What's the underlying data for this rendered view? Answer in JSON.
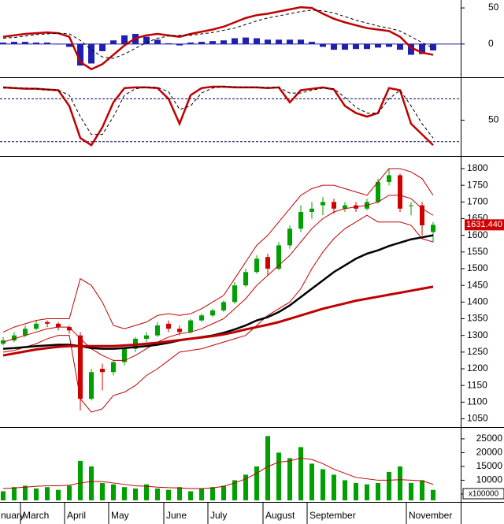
{
  "chart_data": [
    {
      "type": "macd",
      "ylim": [
        -45,
        61
      ],
      "yticks": [
        0,
        50
      ],
      "lines": [
        {
          "color": "#c00000",
          "width": 2.5,
          "dashed": false,
          "values": [
            10,
            12,
            14,
            15,
            16,
            15,
            10,
            -25,
            -35,
            -28,
            -15,
            -2,
            8,
            12,
            14,
            12,
            10,
            14,
            17,
            20,
            24,
            30,
            36,
            40,
            42,
            45,
            48,
            51,
            50,
            42,
            35,
            30,
            26,
            22,
            20,
            18,
            10,
            -5,
            -12,
            -15
          ]
        },
        {
          "color": "#000000",
          "width": 1,
          "dashed": true,
          "values": [
            8,
            9,
            11,
            13,
            14,
            15,
            14,
            5,
            -8,
            -18,
            -20,
            -14,
            -6,
            2,
            8,
            11,
            12,
            12,
            14,
            16,
            19,
            22,
            27,
            32,
            36,
            39,
            42,
            45,
            47,
            46,
            43,
            38,
            33,
            29,
            25,
            22,
            18,
            10,
            2,
            -6
          ]
        }
      ],
      "bars": {
        "color": "#2020b0",
        "values": [
          2,
          3,
          3,
          2,
          2,
          0,
          -4,
          -30,
          -27,
          -10,
          5,
          12,
          14,
          10,
          6,
          1,
          -2,
          2,
          3,
          4,
          5,
          8,
          9,
          8,
          6,
          6,
          6,
          6,
          3,
          -4,
          -8,
          -8,
          -7,
          -7,
          -5,
          -4,
          -8,
          -15,
          -14,
          -9
        ]
      }
    },
    {
      "type": "line",
      "ylim": [
        2,
        108
      ],
      "yticks": [
        50
      ],
      "levels": [
        20,
        80
      ],
      "lines": [
        {
          "color": "#c00000",
          "width": 2.5,
          "dashed": false,
          "values": [
            96,
            95,
            94,
            94,
            93,
            92,
            70,
            25,
            15,
            40,
            75,
            95,
            96,
            96,
            95,
            80,
            45,
            85,
            95,
            97,
            97,
            96,
            96,
            96,
            95,
            96,
            75,
            92,
            94,
            96,
            93,
            70,
            60,
            55,
            60,
            95,
            92,
            45,
            30,
            15
          ]
        },
        {
          "color": "#000000",
          "width": 1,
          "dashed": true,
          "values": [
            95,
            95,
            95,
            94,
            93,
            92,
            85,
            55,
            30,
            30,
            55,
            85,
            94,
            96,
            96,
            90,
            65,
            70,
            88,
            95,
            97,
            97,
            96,
            96,
            96,
            96,
            88,
            88,
            92,
            95,
            94,
            82,
            68,
            60,
            60,
            80,
            92,
            70,
            45,
            25
          ]
        }
      ]
    },
    {
      "type": "candlestick",
      "ylim": [
        1030,
        1833
      ],
      "yticks": [
        1050,
        1100,
        1150,
        1200,
        1250,
        1300,
        1350,
        1400,
        1450,
        1500,
        1550,
        1600,
        1650,
        1700,
        1750,
        1800
      ],
      "up_color": "#00a000",
      "down_color": "#d00000",
      "open": [
        1275,
        1285,
        1300,
        1320,
        1340,
        1335,
        1325,
        1300,
        1110,
        1200,
        1190,
        1220,
        1260,
        1290,
        1300,
        1335,
        1320,
        1310,
        1345,
        1360,
        1375,
        1400,
        1450,
        1490,
        1535,
        1500,
        1570,
        1620,
        1670,
        1690,
        1700,
        1680,
        1690,
        1680,
        1700,
        1760,
        1780,
        1690,
        1690,
        1610
      ],
      "high": [
        1295,
        1310,
        1330,
        1345,
        1345,
        1340,
        1330,
        1310,
        1200,
        1215,
        1225,
        1265,
        1295,
        1310,
        1340,
        1345,
        1330,
        1350,
        1365,
        1380,
        1405,
        1460,
        1500,
        1540,
        1545,
        1580,
        1630,
        1690,
        1700,
        1715,
        1710,
        1700,
        1700,
        1710,
        1770,
        1800,
        1785,
        1700,
        1700,
        1640
      ],
      "low": [
        1270,
        1280,
        1295,
        1315,
        1325,
        1315,
        1305,
        1075,
        1105,
        1135,
        1180,
        1210,
        1250,
        1280,
        1295,
        1310,
        1300,
        1305,
        1340,
        1355,
        1370,
        1395,
        1445,
        1485,
        1480,
        1495,
        1560,
        1610,
        1650,
        1660,
        1665,
        1670,
        1670,
        1675,
        1695,
        1750,
        1670,
        1660,
        1600,
        1580
      ],
      "close": [
        1285,
        1300,
        1320,
        1335,
        1335,
        1325,
        1315,
        1110,
        1190,
        1190,
        1220,
        1260,
        1290,
        1300,
        1330,
        1320,
        1310,
        1345,
        1360,
        1375,
        1400,
        1450,
        1490,
        1530,
        1500,
        1570,
        1620,
        1670,
        1680,
        1700,
        1680,
        1690,
        1680,
        1700,
        1760,
        1780,
        1680,
        1690,
        1630,
        1631.44
      ],
      "lines": [
        {
          "color": "#c00000",
          "width": 1,
          "values": [
            1310,
            1325,
            1335,
            1345,
            1350,
            1350,
            1350,
            1470,
            1450,
            1400,
            1330,
            1320,
            1330,
            1340,
            1360,
            1365,
            1360,
            1365,
            1380,
            1400,
            1420,
            1470,
            1520,
            1570,
            1600,
            1640,
            1680,
            1720,
            1740,
            1750,
            1750,
            1740,
            1730,
            1720,
            1760,
            1800,
            1800,
            1790,
            1770,
            1720
          ]
        },
        {
          "color": "#c00000",
          "width": 1,
          "values": [
            1280,
            1290,
            1300,
            1310,
            1320,
            1325,
            1325,
            1290,
            1260,
            1240,
            1225,
            1225,
            1240,
            1260,
            1280,
            1295,
            1305,
            1310,
            1320,
            1335,
            1350,
            1380,
            1410,
            1450,
            1480,
            1510,
            1540,
            1580,
            1620,
            1650,
            1670,
            1680,
            1685,
            1690,
            1700,
            1720,
            1720,
            1710,
            1680,
            1660
          ]
        },
        {
          "color": "#c00000",
          "width": 1,
          "values": [
            1250,
            1255,
            1265,
            1275,
            1290,
            1300,
            1300,
            1110,
            1070,
            1080,
            1120,
            1130,
            1150,
            1180,
            1200,
            1225,
            1250,
            1255,
            1260,
            1270,
            1280,
            1290,
            1300,
            1330,
            1360,
            1380,
            1400,
            1440,
            1500,
            1550,
            1590,
            1620,
            1640,
            1660,
            1640,
            1640,
            1640,
            1630,
            1590,
            1580
          ]
        },
        {
          "color": "#000000",
          "width": 2.5,
          "values": [
            1260,
            1262,
            1265,
            1268,
            1270,
            1272,
            1272,
            1268,
            1262,
            1260,
            1260,
            1262,
            1265,
            1268,
            1272,
            1278,
            1285,
            1290,
            1295,
            1300,
            1308,
            1318,
            1330,
            1345,
            1355,
            1370,
            1390,
            1415,
            1440,
            1465,
            1490,
            1510,
            1530,
            1545,
            1555,
            1568,
            1578,
            1588,
            1594,
            1600
          ]
        },
        {
          "color": "#c00000",
          "width": 3,
          "values": [
            1240,
            1246,
            1252,
            1258,
            1262,
            1266,
            1268,
            1268,
            1268,
            1268,
            1268,
            1270,
            1272,
            1275,
            1278,
            1282,
            1286,
            1290,
            1294,
            1298,
            1303,
            1310,
            1318,
            1325,
            1332,
            1340,
            1350,
            1360,
            1370,
            1380,
            1388,
            1396,
            1404,
            1410,
            1416,
            1422,
            1428,
            1434,
            1440,
            1446
          ]
        }
      ],
      "current_price": {
        "value": 1631.44,
        "label": "1631.440"
      }
    },
    {
      "type": "bar",
      "ylim": [
        2700,
        28400
      ],
      "yticks": [
        5000,
        10000,
        15000,
        20000,
        25000
      ],
      "unit_label": "x100000",
      "categories": [
        "nuary",
        null,
        "March",
        null,
        null,
        null,
        "April",
        null,
        null,
        null,
        "May",
        null,
        null,
        null,
        null,
        "June",
        null,
        null,
        null,
        "July",
        null,
        null,
        null,
        null,
        "August",
        null,
        null,
        null,
        "September",
        null,
        null,
        null,
        null,
        null,
        null,
        null,
        null,
        "November",
        null,
        null
      ],
      "color": "#00a000",
      "values": [
        6000,
        7500,
        8000,
        7000,
        7500,
        6500,
        8000,
        17000,
        15000,
        9000,
        8500,
        7500,
        7000,
        8500,
        7000,
        6500,
        7500,
        6000,
        7000,
        7500,
        8000,
        10000,
        12000,
        15000,
        26000,
        20000,
        18000,
        22000,
        16000,
        14000,
        12000,
        10000,
        9000,
        8500,
        9000,
        13000,
        15000,
        9000,
        10000,
        6500
      ],
      "lines": [
        {
          "color": "#c00000",
          "width": 1,
          "values": [
            7000,
            7200,
            7500,
            7800,
            8000,
            8000,
            8200,
            9000,
            9500,
            9500,
            9000,
            8500,
            8000,
            7800,
            7500,
            7300,
            7200,
            7000,
            7000,
            7200,
            7800,
            9000,
            10500,
            12500,
            15000,
            16500,
            17000,
            18000,
            17500,
            16000,
            14000,
            12500,
            11000,
            10500,
            10000,
            10000,
            10200,
            10000,
            9800,
            8500
          ]
        }
      ]
    }
  ]
}
